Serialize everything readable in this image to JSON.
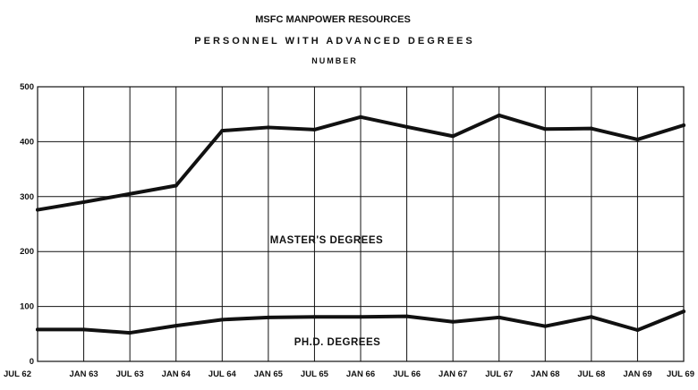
{
  "chart_data": {
    "type": "line",
    "title": "MSFC MANPOWER RESOURCES",
    "subtitle": "PERSONNEL WITH ADVANCED DEGREES",
    "ylabel": "NUMBER",
    "xlabel": "",
    "ylim": [
      0,
      500
    ],
    "yticks": [
      0,
      100,
      200,
      300,
      400,
      500
    ],
    "grid": true,
    "categories": [
      "JUL 62",
      "JAN 63",
      "JUL 63",
      "JAN 64",
      "JUL 64",
      "JAN 65",
      "JUL 65",
      "JAN 66",
      "JUL 66",
      "JAN 67",
      "JUL 67",
      "JAN 68",
      "JUL 68",
      "JAN 69",
      "JUL 69"
    ],
    "series": [
      {
        "name": "MASTER'S DEGREES",
        "values": [
          276,
          290,
          305,
          320,
          420,
          426,
          422,
          445,
          427,
          410,
          448,
          423,
          424,
          404,
          430
        ]
      },
      {
        "name": "PH.D. DEGREES",
        "values": [
          58,
          58,
          52,
          65,
          76,
          80,
          81,
          81,
          82,
          72,
          80,
          64,
          81,
          57,
          91
        ]
      }
    ]
  }
}
